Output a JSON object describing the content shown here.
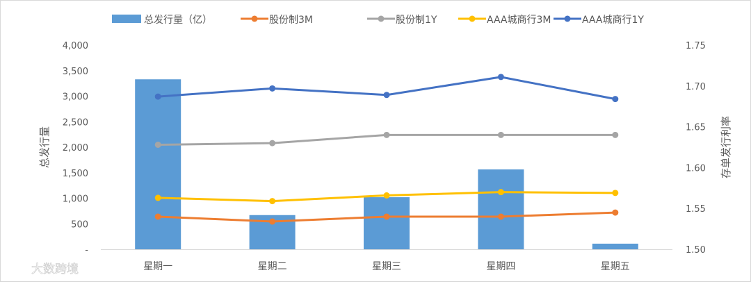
{
  "chart_data": {
    "type": "bar+line",
    "categories": [
      "星期一",
      "星期二",
      "星期三",
      "星期四",
      "星期五"
    ],
    "bar_series": {
      "name": "总发行量（亿）",
      "values": [
        3330,
        670,
        1020,
        1565,
        110
      ],
      "color": "#5b9bd5",
      "axis": "left"
    },
    "line_series": [
      {
        "name": "股份制3M",
        "values": [
          1.54,
          1.534,
          1.54,
          1.54,
          1.545
        ],
        "color": "#ed7d31",
        "axis": "right"
      },
      {
        "name": "股份制1Y",
        "values": [
          1.628,
          1.63,
          1.64,
          1.64,
          1.64
        ],
        "color": "#a5a5a5",
        "axis": "right"
      },
      {
        "name": "AAA城商行3M",
        "values": [
          1.563,
          1.559,
          1.566,
          1.57,
          1.569
        ],
        "color": "#ffc000",
        "axis": "right"
      },
      {
        "name": "AAA城商行1Y",
        "values": [
          1.687,
          1.697,
          1.689,
          1.711,
          1.684
        ],
        "color": "#4472c4",
        "axis": "right"
      }
    ],
    "left_axis": {
      "label": "总发行量",
      "ylim": [
        0,
        4000
      ],
      "ticks": [
        "-",
        "500",
        "1,000",
        "1,500",
        "2,000",
        "2,500",
        "3,000",
        "3,500",
        "4,000"
      ]
    },
    "right_axis": {
      "label": "存单发行利率",
      "ylim": [
        1.5,
        1.75
      ],
      "ticks": [
        "1.50",
        "1.55",
        "1.60",
        "1.65",
        "1.70",
        "1.75"
      ]
    },
    "legend_placement": "top",
    "grid": false
  },
  "watermark": {
    "text": "大数跨境"
  }
}
